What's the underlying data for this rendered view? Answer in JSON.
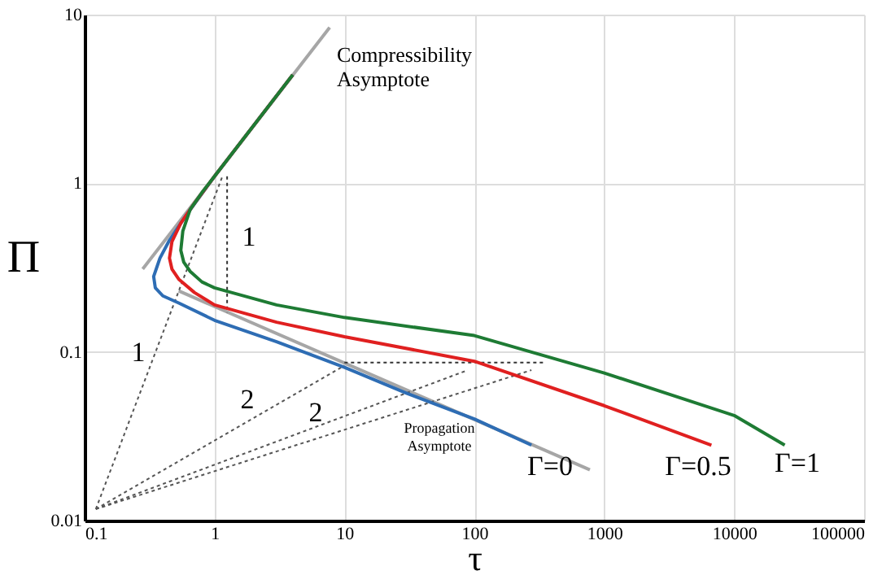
{
  "chart_data": {
    "type": "line",
    "xlabel": "τ",
    "ylabel": "Π",
    "log": "xy",
    "grid": true,
    "xlim": [
      0.1,
      100000
    ],
    "xticks": [
      0.1,
      1,
      10,
      100,
      1000,
      10000,
      100000
    ],
    "ylim": [
      0.01,
      10
    ],
    "yticks": [
      0.01,
      0.1,
      1,
      10
    ],
    "series": [
      {
        "color": "#a6a6a6",
        "x": [
          0.28,
          7.7
        ],
        "values": [
          0.31,
          8.4
        ]
      },
      {
        "color": "#a6a6a6",
        "x": [
          0.53,
          775
        ],
        "values": [
          0.23,
          0.02
        ]
      },
      {
        "color": "#555555",
        "line_style": "dotted",
        "x": [
          0.122,
          1.15
        ],
        "values": [
          0.0117,
          1.1
        ]
      },
      {
        "color": "#555555",
        "line_style": "dotted",
        "x": [
          0.122,
          10
        ],
        "values": [
          0.0117,
          0.083
        ]
      },
      {
        "color": "#555555",
        "line_style": "dotted",
        "x": [
          0.122,
          89
        ],
        "values": [
          0.0117,
          0.078
        ]
      },
      {
        "color": "#555555",
        "line_style": "dotted",
        "x": [
          0.122,
          275
        ],
        "values": [
          0.0117,
          0.078
        ]
      },
      {
        "color": "#333333",
        "line_style": "dotted",
        "x": [
          1.25,
          1.25
        ],
        "values": [
          1.1,
          0.17
        ]
      },
      {
        "color": "#333333",
        "line_style": "dotted",
        "x": [
          10,
          355
        ],
        "values": [
          0.0865,
          0.0865
        ]
      },
      {
        "color": "#2e6db4",
        "x": [
          4,
          1,
          0.6,
          0.45,
          0.38,
          0.34,
          0.35,
          0.4,
          0.53,
          1,
          3,
          10,
          30,
          100,
          275
        ],
        "values": [
          4.4,
          1.1,
          0.64,
          0.46,
          0.36,
          0.28,
          0.24,
          0.215,
          0.195,
          0.154,
          0.115,
          0.081,
          0.057,
          0.04,
          0.028
        ]
      },
      {
        "color": "#e02020",
        "x": [
          4,
          1,
          0.7,
          0.55,
          0.47,
          0.45,
          0.47,
          0.53,
          0.7,
          1,
          3,
          10,
          100,
          1000,
          6680
        ],
        "values": [
          4.4,
          1.1,
          0.76,
          0.58,
          0.45,
          0.36,
          0.31,
          0.27,
          0.225,
          0.19,
          0.15,
          0.123,
          0.088,
          0.048,
          0.028
        ]
      },
      {
        "color": "#1e7b34",
        "x": [
          4,
          1,
          0.8,
          0.65,
          0.57,
          0.55,
          0.58,
          0.65,
          0.8,
          1,
          3,
          10,
          100,
          1000,
          10000,
          24500
        ],
        "values": [
          4.4,
          1.1,
          0.88,
          0.7,
          0.52,
          0.4,
          0.34,
          0.3,
          0.26,
          0.24,
          0.19,
          0.16,
          0.125,
          0.075,
          0.042,
          0.028
        ]
      }
    ],
    "annotations": [
      "Compressibility Asymptote",
      "Propagation Asymptote",
      "1",
      "1",
      "2",
      "2",
      "Γ=0",
      "Γ=0.5",
      "Γ=1"
    ]
  }
}
